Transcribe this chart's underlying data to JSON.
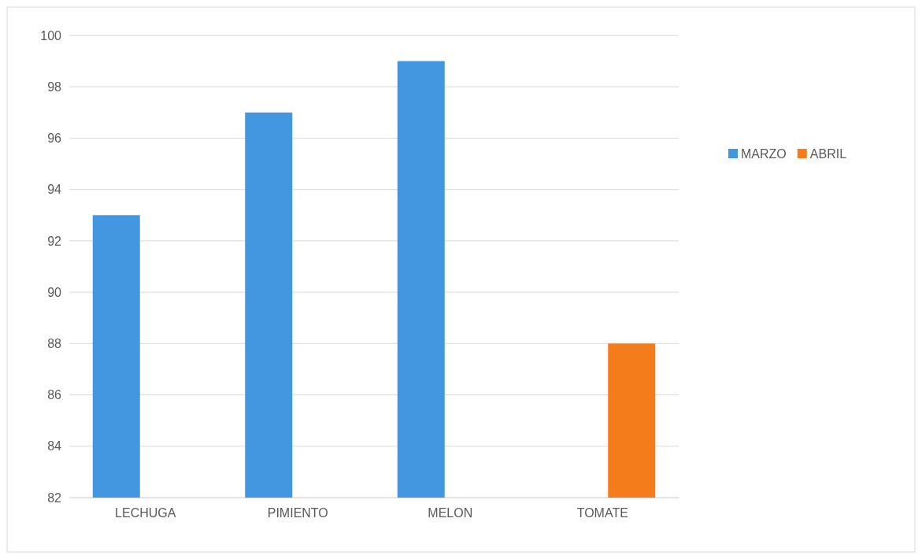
{
  "chart_data": {
    "type": "bar",
    "categories": [
      "LECHUGA",
      "PIMIENTO",
      "MELON",
      "TOMATE"
    ],
    "series": [
      {
        "name": "MARZO",
        "color": "#4396e0",
        "values": [
          93,
          97,
          99,
          null
        ]
      },
      {
        "name": "ABRIL",
        "color": "#f57c1a",
        "values": [
          null,
          null,
          null,
          88
        ]
      }
    ],
    "ylim": [
      82,
      100
    ],
    "yticks": [
      82,
      84,
      86,
      88,
      90,
      92,
      94,
      96,
      98,
      100
    ],
    "grid": "y",
    "legend": "right"
  }
}
